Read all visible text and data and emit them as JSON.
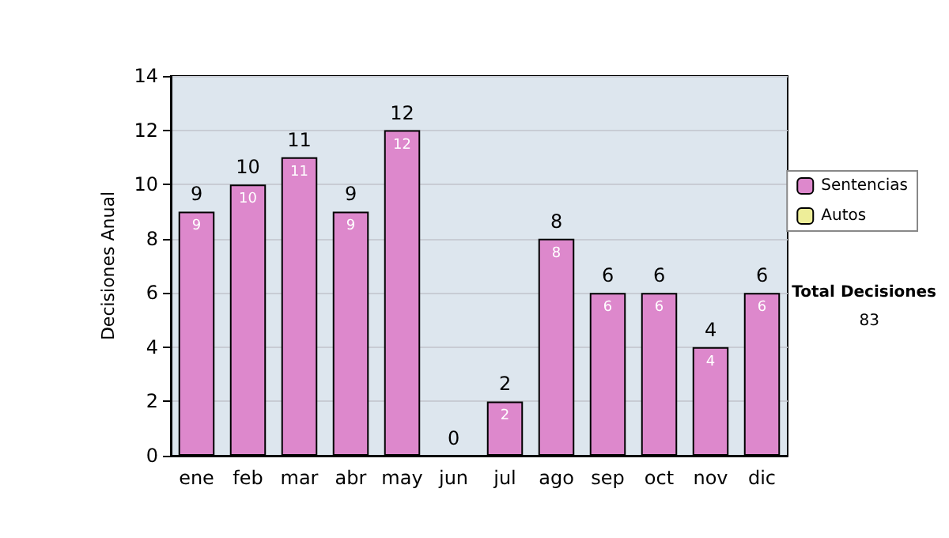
{
  "chart_data": {
    "type": "bar",
    "ylabel": "Decisiones Anual",
    "categories": [
      "ene",
      "feb",
      "mar",
      "abr",
      "may",
      "jun",
      "jul",
      "ago",
      "sep",
      "oct",
      "nov",
      "dic"
    ],
    "series": [
      {
        "name": "Sentencias",
        "color": "#dd88cc",
        "values": [
          9,
          10,
          11,
          9,
          12,
          0,
          2,
          8,
          6,
          6,
          4,
          6
        ],
        "value_labels": [
          "9",
          "10",
          "11",
          "9",
          "12",
          null,
          "2",
          "8",
          "6",
          "6",
          "4",
          "6"
        ]
      },
      {
        "name": "Autos",
        "color": "#eeee99",
        "values": [
          0,
          0,
          0,
          0,
          0,
          0,
          0,
          0,
          0,
          0,
          0,
          0
        ]
      }
    ],
    "stacked": true,
    "totals": [
      "9",
      "10",
      "11",
      "9",
      "12",
      "0",
      "2",
      "8",
      "6",
      "6",
      "4",
      "6"
    ],
    "ylim": [
      0,
      14
    ],
    "yticks": [
      0,
      2,
      4,
      6,
      8,
      10,
      12,
      14
    ],
    "grid": "y",
    "legend": "top right",
    "annotations": [
      "Total Decisiones",
      "83"
    ]
  }
}
